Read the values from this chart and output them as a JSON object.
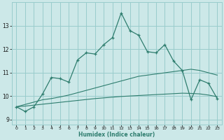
{
  "xlabel": "Humidex (Indice chaleur)",
  "x_values": [
    0,
    1,
    2,
    3,
    4,
    5,
    6,
    7,
    8,
    9,
    10,
    11,
    12,
    13,
    14,
    15,
    16,
    17,
    18,
    19,
    20,
    21,
    22,
    23
  ],
  "main_line": [
    9.55,
    9.35,
    9.55,
    10.1,
    10.8,
    10.75,
    10.6,
    11.55,
    11.85,
    11.8,
    12.2,
    12.5,
    13.55,
    12.8,
    12.6,
    11.9,
    11.85,
    12.2,
    11.5,
    11.1,
    9.85,
    10.7,
    10.55,
    9.9
  ],
  "line2": [
    9.55,
    9.65,
    9.75,
    9.85,
    9.9,
    9.97,
    10.05,
    10.15,
    10.25,
    10.35,
    10.45,
    10.55,
    10.65,
    10.75,
    10.85,
    10.9,
    10.95,
    11.0,
    11.05,
    11.1,
    11.15,
    11.1,
    11.0,
    10.9
  ],
  "line3": [
    9.55,
    9.58,
    9.62,
    9.66,
    9.7,
    9.74,
    9.78,
    9.82,
    9.86,
    9.9,
    9.93,
    9.96,
    9.99,
    10.01,
    10.03,
    10.05,
    10.07,
    10.09,
    10.11,
    10.13,
    10.12,
    10.1,
    10.05,
    9.98
  ],
  "line_color": "#2e7d6e",
  "bg_color": "#cce8e8",
  "grid_color": "#99cccc",
  "ylim": [
    8.8,
    14.0
  ],
  "yticks": [
    9,
    10,
    11,
    12,
    13
  ],
  "xlim": [
    -0.5,
    23.5
  ]
}
